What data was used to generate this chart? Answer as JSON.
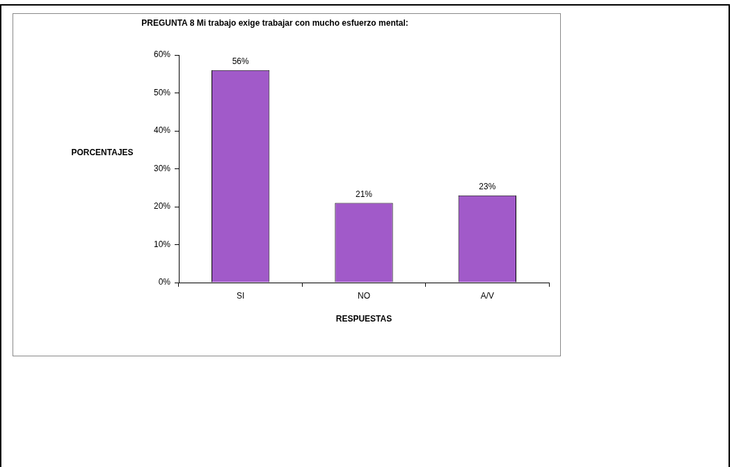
{
  "chart_data": {
    "type": "bar",
    "title": "PREGUNTA 8 Mi trabajo exige trabajar con mucho esfuerzo mental:",
    "xlabel": "RESPUESTAS",
    "ylabel": "PORCENTAJES",
    "categories": [
      "SI",
      "NO",
      "A/V"
    ],
    "values": [
      56,
      21,
      23
    ],
    "color": "#a15ac9",
    "value_labels": [
      "56%",
      "21%",
      "23%"
    ],
    "ylim": [
      0,
      60
    ],
    "yticks": [
      {
        "value": 0,
        "label": "0%"
      },
      {
        "value": 10,
        "label": "10%"
      },
      {
        "value": 20,
        "label": "20%"
      },
      {
        "value": 30,
        "label": "30%"
      },
      {
        "value": 40,
        "label": "40%"
      },
      {
        "value": 50,
        "label": "50%"
      },
      {
        "value": 60,
        "label": "60%"
      }
    ],
    "grid": false,
    "legend": false
  }
}
